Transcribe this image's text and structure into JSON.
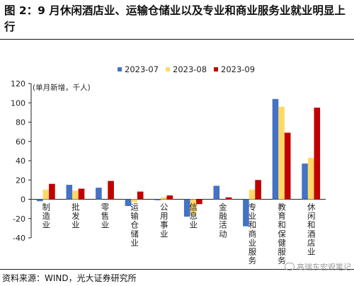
{
  "title": "图 2：9 月休闲酒店业、运输仓储业以及专业和商业服务业就业明显上行",
  "source": "资料来源：WIND，光大证券研究所",
  "watermark": "高瑞东宏观笔记",
  "colors": {
    "2023-07": "#4472C4",
    "2023-08": "#FFD966",
    "2023-09": "#C00000"
  },
  "chart_data": {
    "type": "bar",
    "unit_label": "(单月新增，千人)",
    "ylim": [
      -40,
      120
    ],
    "yticks": [
      -40,
      -20,
      0,
      20,
      40,
      60,
      80,
      100,
      120
    ],
    "grid": false,
    "legend_position": "top-center",
    "categories": [
      "制造业",
      "批发业",
      "零售业",
      "运输仓储业",
      "公用事业",
      "信息业",
      "金融活动",
      "专业和商业服务",
      "教育和保健服务",
      "休闲和酒店业"
    ],
    "series": [
      {
        "name": "2023-07",
        "values": [
          -2,
          15,
          12,
          -7,
          -1,
          -18,
          14,
          -28,
          104,
          37
        ]
      },
      {
        "name": "2023-08",
        "values": [
          10,
          9,
          0,
          -3,
          2,
          -16,
          0,
          10,
          96,
          43
        ]
      },
      {
        "name": "2023-09",
        "values": [
          16,
          11,
          19,
          8,
          4,
          -5,
          2,
          20,
          69,
          95
        ]
      }
    ]
  }
}
